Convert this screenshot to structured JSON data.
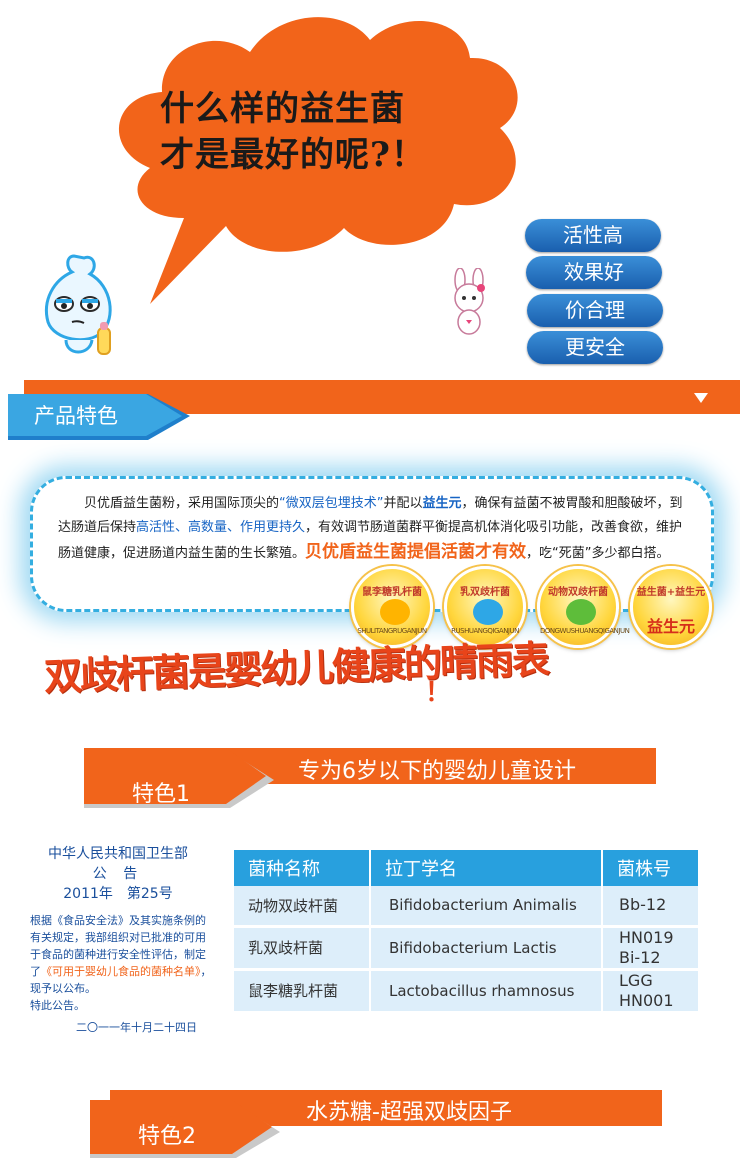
{
  "hero": {
    "line1": "什么样的益生菌",
    "line2": "才是最好的呢?！",
    "pills": [
      "活性高",
      "效果好",
      "价合理",
      "更安全"
    ],
    "colors": {
      "cloud": "#f2641a",
      "pill": "#1f6fc0"
    }
  },
  "section": {
    "title": "产品特色",
    "toggle_icon": "chevron-down-icon"
  },
  "description": {
    "p1": "贝优盾益生菌粉，采用国际顶尖的",
    "tech": "“微双层包埋技术”",
    "p2": "并配以",
    "prebiotic": "益生元",
    "p3": "，确保有益菌不被胃酸和胆酸破坏，到达肠道后保持",
    "traits": "高活性、高数量、作用更持久",
    "p4": "，有效调节肠道菌群平衡提高机体消化吸引功能，改善食欲，维护肠道健康，促进肠道内益生菌的生长繁殖。",
    "slogan": "贝优盾益生菌提倡活菌才有效",
    "p5": "，吃“死菌”多少都白搭。"
  },
  "badges": [
    {
      "label": "鼠李糖乳杆菌",
      "sub": "SHULITANGRUGANJUN"
    },
    {
      "label": "乳双歧杆菌",
      "sub": "RUSHUANGQIGANJUN"
    },
    {
      "label": "动物双歧杆菌",
      "sub": "DONGWUSHUANGQIGANJUN"
    },
    {
      "label": "益生菌+益生元",
      "big": "益生元"
    }
  ],
  "headline": {
    "text": "双歧杆菌是婴幼儿健康的晴雨表",
    "mark": "！"
  },
  "feature1": {
    "tag": "特色1",
    "text": "专为6岁以下的婴幼儿童设计"
  },
  "notice": {
    "issuer": "中华人民共和国卫生部",
    "kind": "公 告",
    "number": "2011年　第25号",
    "body_pre": "根据《食品安全法》及其实施条例的有关规定，我部组织对已批准的可用于食品的菌种进行安全性评估，制定了",
    "body_hl": "《可用于婴幼儿食品的菌种名单》",
    "body_post": "，现予以公布。",
    "closing": "特此公告。",
    "date": "二〇一一年十月二十四日"
  },
  "table": {
    "headers": [
      "菌种名称",
      "拉丁学名",
      "菌株号"
    ],
    "rows": [
      {
        "name": "动物双歧杆菌",
        "latin": "Bifidobacterium Animalis",
        "codes": [
          "Bb-12"
        ]
      },
      {
        "name": "乳双歧杆菌",
        "latin": "Bifidobacterium Lactis",
        "codes": [
          "HN019",
          "Bi-12"
        ]
      },
      {
        "name": "鼠李糖乳杆菌",
        "latin": "Lactobacillus rhamnosus",
        "codes": [
          "LGG",
          "HN001"
        ]
      }
    ]
  },
  "feature2": {
    "tag": "特色2",
    "text": "水苏糖-超强双歧因子"
  }
}
